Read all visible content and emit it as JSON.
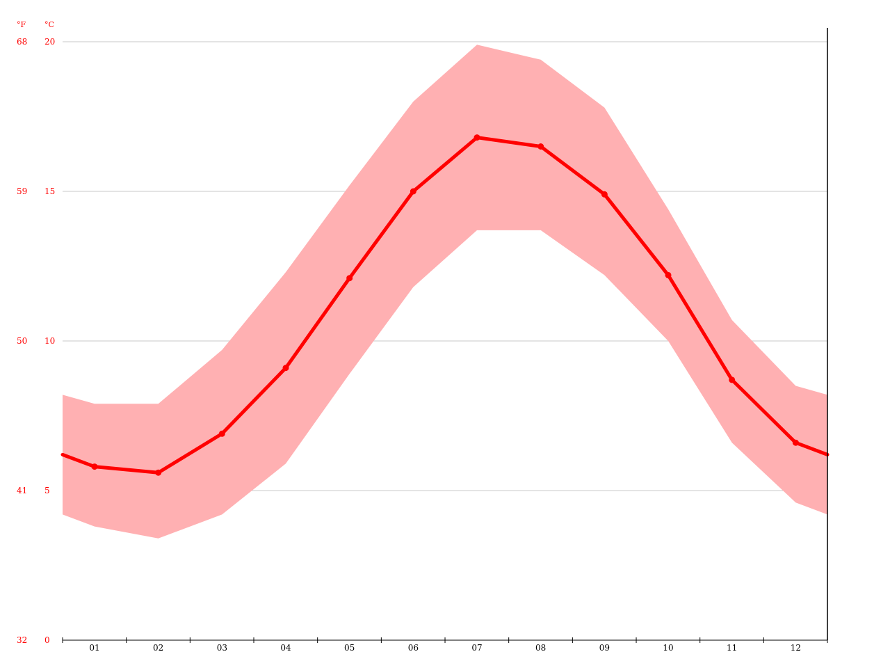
{
  "chart_data": {
    "type": "area",
    "title": "",
    "xlabel": "",
    "ylabel": "",
    "categories": [
      "01",
      "02",
      "03",
      "04",
      "05",
      "06",
      "07",
      "08",
      "09",
      "10",
      "11",
      "12"
    ],
    "ylim": [
      0,
      20
    ],
    "y_units": {
      "left": "°F",
      "right": "°C"
    },
    "y_ticks_c": [
      0,
      5,
      10,
      15,
      20
    ],
    "y_ticks_f": [
      32,
      41,
      50,
      59,
      68
    ],
    "grid": "horizontal",
    "series": [
      {
        "values": [
          5.8,
          5.6,
          6.9,
          9.1,
          12.1,
          15.0,
          16.8,
          16.5,
          14.9,
          12.2,
          8.7,
          6.6
        ]
      },
      {
        "values": [
          7.9,
          7.9,
          9.7,
          12.3,
          15.2,
          18.0,
          19.9,
          19.4,
          17.8,
          14.4,
          10.7,
          8.5
        ]
      },
      {
        "values": [
          3.8,
          3.4,
          4.2,
          5.9,
          8.9,
          11.8,
          13.7,
          13.7,
          12.2,
          10.0,
          6.6,
          4.6
        ]
      }
    ],
    "colors": {
      "line": "#ff0000",
      "band": "#ffb0b2",
      "grid": "#c8c8c8",
      "axis_text": "#ff0000"
    }
  }
}
